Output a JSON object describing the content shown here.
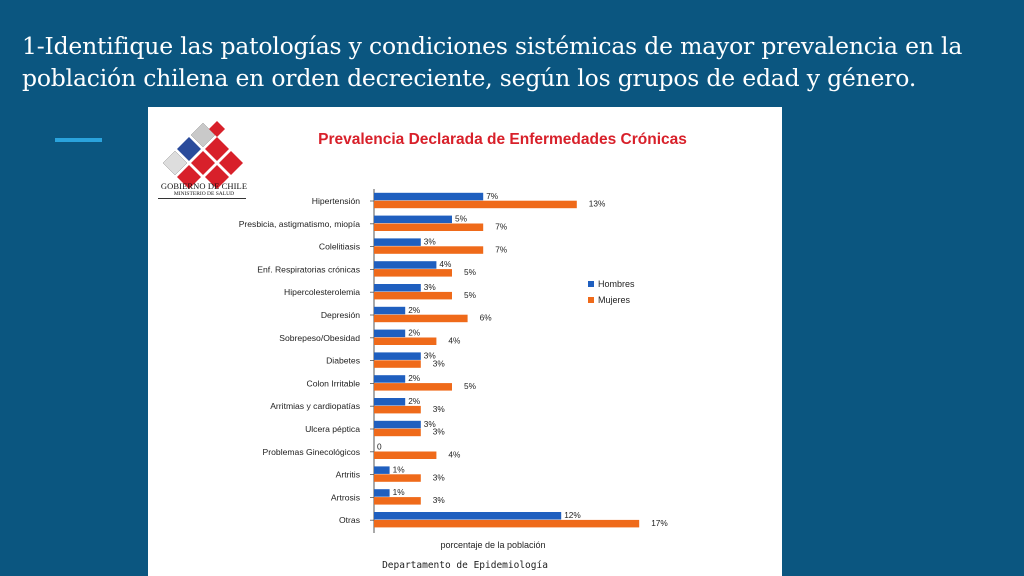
{
  "slide": {
    "title": "1-Identifique las patologías y condiciones sistémicas de mayor prevalencia en la población chilena en orden decreciente, según los grupos de edad y género."
  },
  "logo": {
    "line1": "GOBIERNO DE CHILE",
    "line2": "MINISTERIO DE SALUD"
  },
  "footer": "Departamento de Epidemiología",
  "colors": {
    "background": "#0b5680",
    "accent": "#2aa3dd",
    "hombres": "#1f5fbf",
    "mujeres": "#ef6a1a",
    "chart_title": "#d8202a"
  },
  "chart_data": {
    "type": "bar",
    "orientation": "horizontal",
    "title": "Prevalencia Declarada de Enfermedades Crónicas",
    "xlabel": "porcentaje de la población",
    "ylabel": "",
    "xlim": [
      0,
      17
    ],
    "grid": false,
    "legend_position": "right",
    "categories": [
      "Hipertensión",
      "Presbicia, astigmatismo,  miopía",
      "Colelitiasis",
      "Enf. Respiratorias crónicas",
      "Hipercolesterolemia",
      "Depresión",
      "Sobrepeso/Obesidad",
      "Diabetes",
      "Colon  Irritable",
      "Arritmias  y cardiopatías",
      "Ulcera péptica",
      "Problemas Ginecológicos",
      "Artritis",
      "Artrosis",
      "Otras"
    ],
    "series": [
      {
        "name": "Hombres",
        "values": [
          7,
          5,
          3,
          4,
          3,
          2,
          2,
          3,
          2,
          2,
          3,
          0,
          1,
          1,
          12
        ],
        "labels": [
          "7%",
          "5%",
          "3%",
          "4%",
          "3%",
          "2%",
          "2%",
          "3%",
          "2%",
          "2%",
          "3%",
          "0",
          "1%",
          "1%",
          "12%"
        ]
      },
      {
        "name": "Mujeres",
        "values": [
          13,
          7,
          7,
          5,
          5,
          6,
          4,
          3,
          5,
          3,
          3,
          4,
          3,
          3,
          17
        ],
        "labels": [
          "13%",
          "7%",
          "7%",
          "5%",
          "5%",
          "6%",
          "4%",
          "3%",
          "5%",
          "3%",
          "3%",
          "4%",
          "3%",
          "3%",
          "17%"
        ]
      }
    ]
  }
}
